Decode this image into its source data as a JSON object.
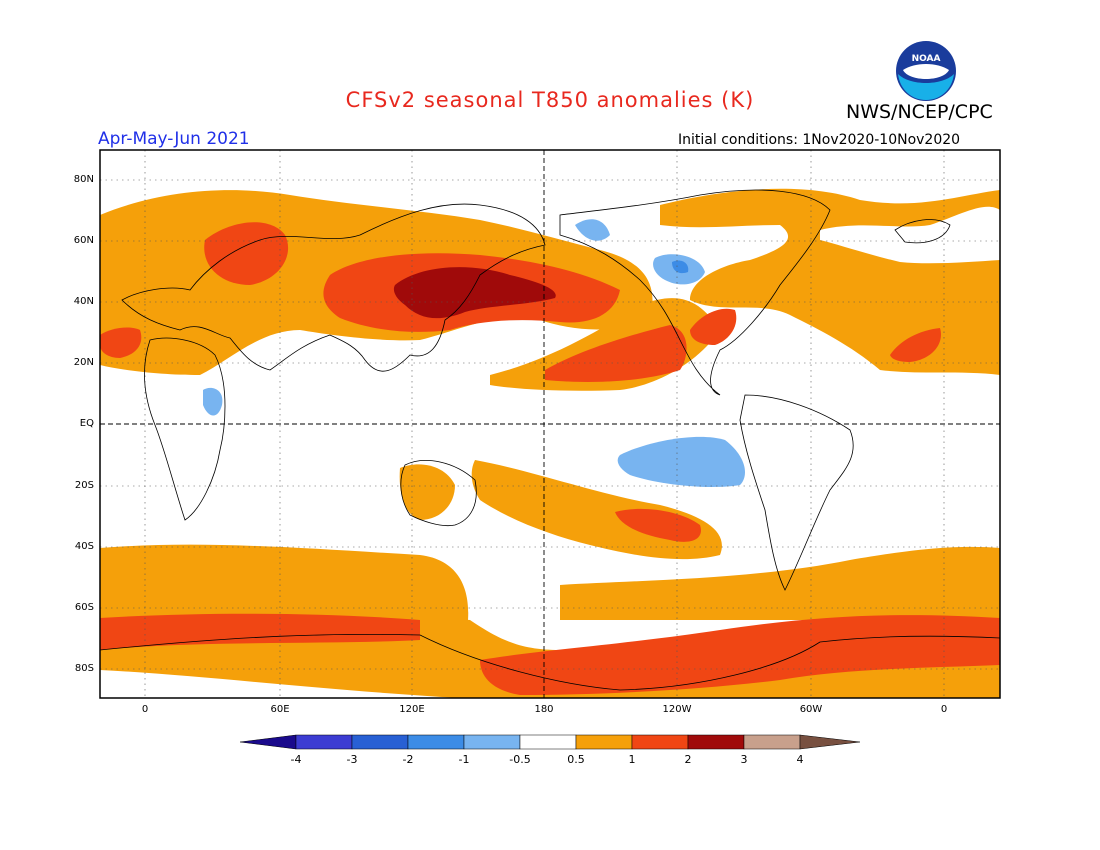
{
  "title": "CFSv2 seasonal T850 anomalies (K)",
  "agency": "NWS/NCEP/CPC",
  "logo_text": "NOAA",
  "period": "Apr-May-Jun 2021",
  "initial_conditions": "Initial conditions: 1Nov2020-10Nov2020",
  "lat_labels": [
    "80N",
    "60N",
    "40N",
    "20N",
    "EQ",
    "20S",
    "40S",
    "60S",
    "80S"
  ],
  "lon_labels": [
    "0",
    "60E",
    "120E",
    "180",
    "120W",
    "60W",
    "0"
  ],
  "legend": {
    "labels": [
      "-4",
      "-3",
      "-2",
      "-1",
      "-0.5",
      "0.5",
      "1",
      "2",
      "3",
      "4"
    ],
    "colors": [
      "#1a0a8c",
      "#3c3cd2",
      "#2860d4",
      "#3c8ce6",
      "#78b4f0",
      "#ffffff",
      "#f5a00a",
      "#f04614",
      "#a00a0a",
      "#c8a08c",
      "#785040"
    ]
  },
  "colors": {
    "title": "#e8281e",
    "period": "#2030e8",
    "warm_light": "#f5a00a",
    "warm_mid": "#f04614",
    "warm_dark": "#a00a0a",
    "cool_light": "#78b4f0",
    "cool_mid": "#3c8ce6"
  }
}
